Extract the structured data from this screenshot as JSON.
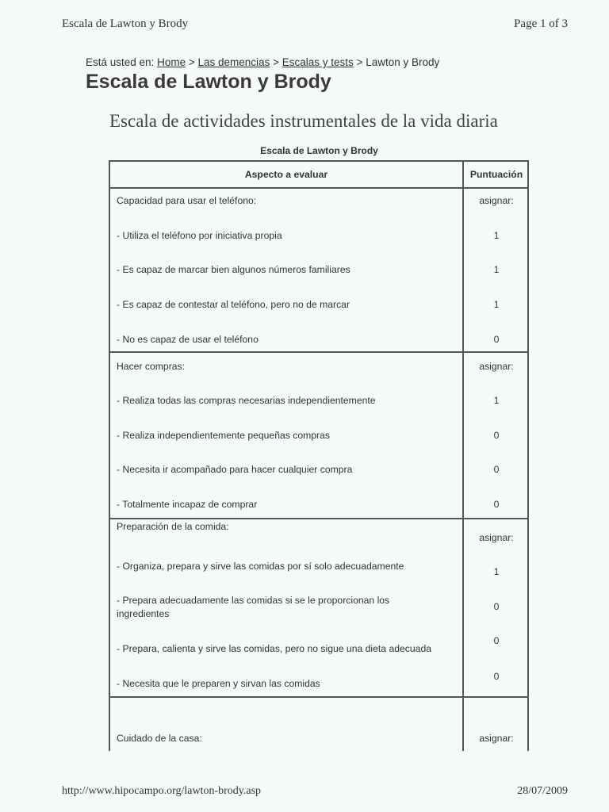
{
  "header": {
    "doc_title": "Escala de Lawton y Brody",
    "page": "Page 1 of 3"
  },
  "breadcrumb": {
    "prefix": "Está usted en:",
    "items": [
      "Home",
      "Las demencias",
      "Escalas y tests"
    ],
    "current": "Lawton y Brody",
    "separator": ">"
  },
  "title": "Escala de Lawton y Brody",
  "subtitle": "Escala de actividades instrumentales de la vida diaria",
  "table": {
    "caption": "Escala de Lawton y Brody",
    "columns": [
      "Aspecto a evaluar",
      "Puntuación"
    ],
    "sections": [
      {
        "label": "Capacidad para usar el teléfono:",
        "score": "asignar:",
        "items": [
          {
            "text": "- Utiliza el teléfono por iniciativa propia",
            "score": "1"
          },
          {
            "text": "- Es capaz de marcar bien algunos números familiares",
            "score": "1"
          },
          {
            "text": "- Es capaz de contestar al teléfono, pero no de marcar",
            "score": "1"
          },
          {
            "text": "- No es capaz de usar el teléfono",
            "score": "0"
          }
        ]
      },
      {
        "label": "Hacer compras:",
        "score": "asignar:",
        "items": [
          {
            "text": "- Realiza todas las compras necesarias independientemente",
            "score": "1"
          },
          {
            "text": "- Realiza independientemente pequeñas compras",
            "score": "0"
          },
          {
            "text": "- Necesita ir acompañado para hacer cualquier compra",
            "score": "0"
          },
          {
            "text": "- Totalmente incapaz de comprar",
            "score": "0"
          }
        ]
      },
      {
        "label": "Preparación de la comida:",
        "score": "asignar:",
        "items": [
          {
            "text": "- Organiza, prepara y sirve las comidas por sí solo adecuadamente",
            "score": "1"
          },
          {
            "text": "- Prepara adecuadamente las comidas si se le proporcionan los",
            "text2": "ingredientes",
            "score": "0"
          },
          {
            "text": "- Prepara, calienta y sirve las comidas, pero no sigue una dieta adecuada",
            "score": "0"
          },
          {
            "text": "- Necesita que le preparen y sirvan las comidas",
            "score": "0"
          }
        ]
      },
      {
        "label": "Cuidado de la casa:",
        "score": "asignar:",
        "items": []
      }
    ]
  },
  "footer": {
    "url": "http://www.hipocampo.org/lawton-brody.asp",
    "date": "28/07/2009"
  }
}
